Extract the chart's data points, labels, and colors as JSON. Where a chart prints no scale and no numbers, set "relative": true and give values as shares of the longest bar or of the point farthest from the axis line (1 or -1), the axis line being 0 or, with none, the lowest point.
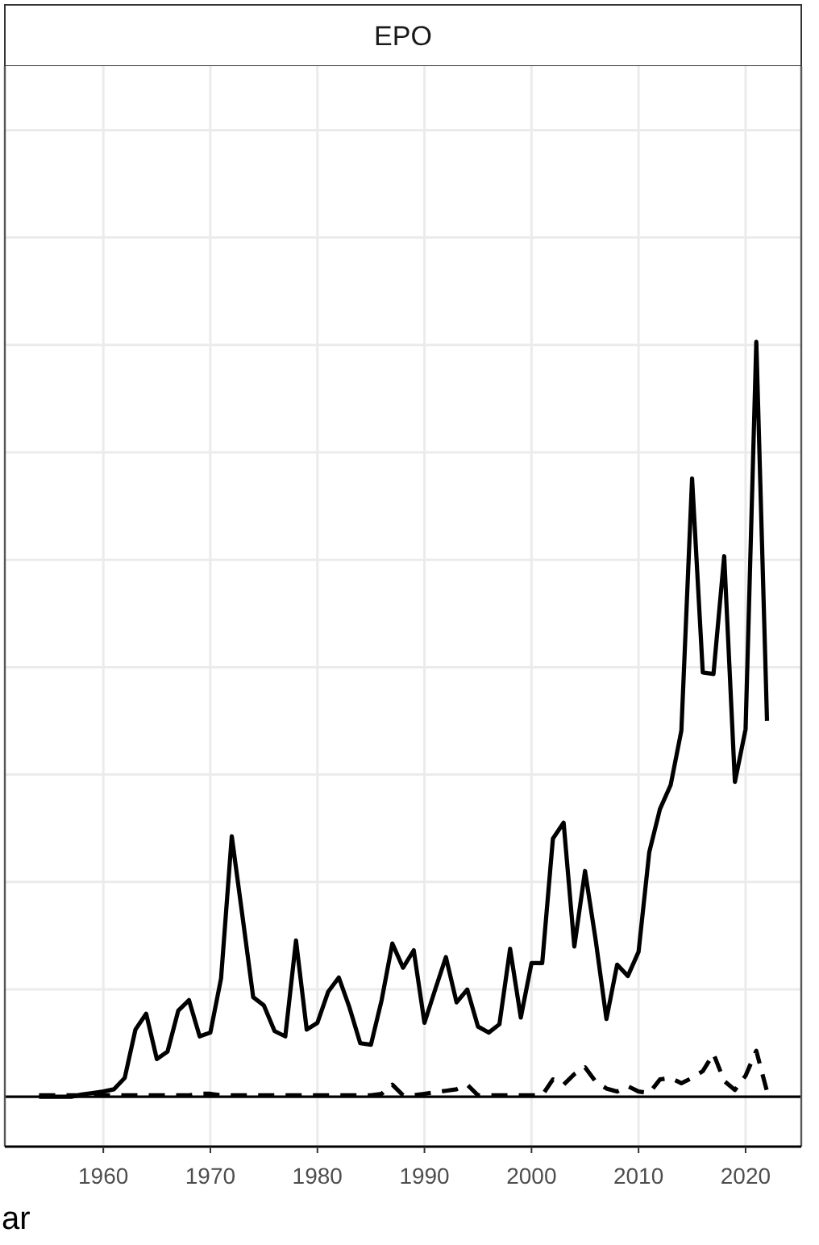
{
  "chart_data": {
    "type": "line",
    "title": "EPO",
    "xlabel": "ar",
    "relative": true,
    "grid": true,
    "x": [
      1954,
      1955,
      1956,
      1957,
      1958,
      1959,
      1960,
      1961,
      1962,
      1963,
      1964,
      1965,
      1966,
      1967,
      1968,
      1969,
      1970,
      1971,
      1972,
      1973,
      1974,
      1975,
      1976,
      1977,
      1978,
      1979,
      1980,
      1981,
      1982,
      1983,
      1984,
      1985,
      1986,
      1987,
      1988,
      1989,
      1990,
      1991,
      1992,
      1993,
      1994,
      1995,
      1996,
      1997,
      1998,
      1999,
      2000,
      2001,
      2002,
      2003,
      2004,
      2005,
      2006,
      2007,
      2008,
      2009,
      2010,
      2011,
      2012,
      2013,
      2014,
      2015,
      2016,
      2017,
      2018,
      2019,
      2020,
      2021,
      2022
    ],
    "xlim": [
      1950.8,
      2025.2
    ],
    "xticks": [
      1960,
      1970,
      1980,
      1990,
      2000,
      2010,
      2020
    ],
    "series": [
      {
        "color": "#000000",
        "line_style": "solid",
        "values": [
          0,
          0,
          0,
          0,
          0.003,
          0.005,
          0.007,
          0.01,
          0.025,
          0.089,
          0.11,
          0.05,
          0.06,
          0.114,
          0.128,
          0.08,
          0.085,
          0.157,
          0.345,
          0.239,
          0.132,
          0.121,
          0.087,
          0.08,
          0.207,
          0.089,
          0.098,
          0.139,
          0.158,
          0.118,
          0.071,
          0.069,
          0.128,
          0.203,
          0.171,
          0.194,
          0.098,
          0.142,
          0.185,
          0.125,
          0.142,
          0.093,
          0.085,
          0.096,
          0.196,
          0.105,
          0.177,
          0.177,
          0.342,
          0.363,
          0.199,
          0.299,
          0.207,
          0.103,
          0.175,
          0.16,
          0.192,
          0.324,
          0.381,
          0.413,
          0.485,
          0.819,
          0.562,
          0.56,
          0.716,
          0.417,
          0.487,
          1.0,
          0.498
        ]
      },
      {
        "color": "#000000",
        "line_style": "dashed",
        "values": [
          0.002,
          0.002,
          0.002,
          0.002,
          0.002,
          0.002,
          0.002,
          0.002,
          0.002,
          0.002,
          0.002,
          0.002,
          0.002,
          0.002,
          0.002,
          0.004,
          0.004,
          0.002,
          0.002,
          0.002,
          0.002,
          0.002,
          0.002,
          0.002,
          0.002,
          0.002,
          0.002,
          0.002,
          0.002,
          0.002,
          0.002,
          0.002,
          0.004,
          0.016,
          0.002,
          0.002,
          0.004,
          0.006,
          0.008,
          0.01,
          0.016,
          0.002,
          0.002,
          0.002,
          0.002,
          0.002,
          0.002,
          0.002,
          0.023,
          0.016,
          0.03,
          0.039,
          0.02,
          0.011,
          0.007,
          0.014,
          0.007,
          0.005,
          0.023,
          0.025,
          0.018,
          0.025,
          0.034,
          0.057,
          0.021,
          0.009,
          0.028,
          0.061,
          0.007
        ]
      }
    ]
  }
}
